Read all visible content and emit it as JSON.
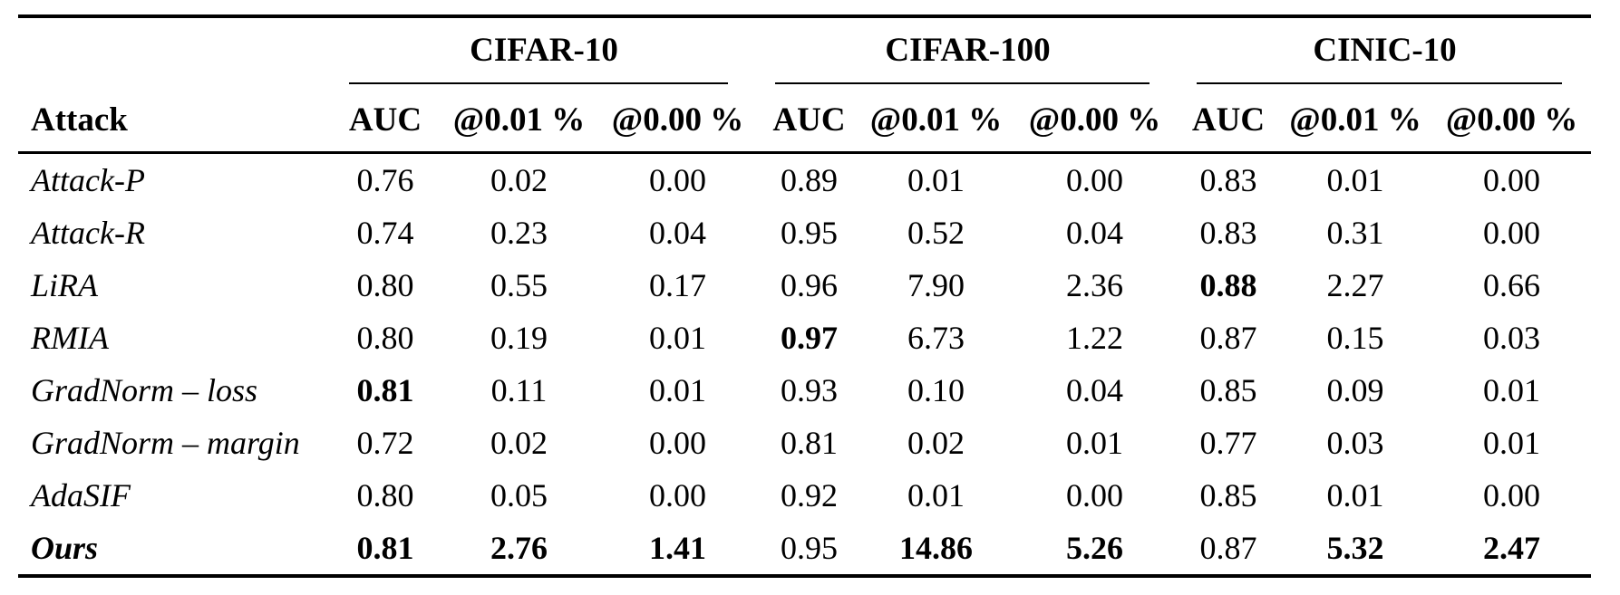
{
  "table": {
    "row_header": "Attack",
    "groups": [
      {
        "label": "CIFAR-10"
      },
      {
        "label": "CIFAR-100"
      },
      {
        "label": "CINIC-10"
      }
    ],
    "metric_headers": [
      "AUC",
      "@0.01 %",
      "@0.00 %"
    ],
    "rows": [
      {
        "attack": "Attack-P",
        "bold_attack": false,
        "values": [
          "0.76",
          "0.02",
          "0.00",
          "0.89",
          "0.01",
          "0.00",
          "0.83",
          "0.01",
          "0.00"
        ],
        "bold": [
          false,
          false,
          false,
          false,
          false,
          false,
          false,
          false,
          false
        ]
      },
      {
        "attack": "Attack-R",
        "bold_attack": false,
        "values": [
          "0.74",
          "0.23",
          "0.04",
          "0.95",
          "0.52",
          "0.04",
          "0.83",
          "0.31",
          "0.00"
        ],
        "bold": [
          false,
          false,
          false,
          false,
          false,
          false,
          false,
          false,
          false
        ]
      },
      {
        "attack": "LiRA",
        "bold_attack": false,
        "values": [
          "0.80",
          "0.55",
          "0.17",
          "0.96",
          "7.90",
          "2.36",
          "0.88",
          "2.27",
          "0.66"
        ],
        "bold": [
          false,
          false,
          false,
          false,
          false,
          false,
          true,
          false,
          false
        ]
      },
      {
        "attack": "RMIA",
        "bold_attack": false,
        "values": [
          "0.80",
          "0.19",
          "0.01",
          "0.97",
          "6.73",
          "1.22",
          "0.87",
          "0.15",
          "0.03"
        ],
        "bold": [
          false,
          false,
          false,
          true,
          false,
          false,
          false,
          false,
          false
        ]
      },
      {
        "attack": "GradNorm – loss",
        "bold_attack": false,
        "values": [
          "0.81",
          "0.11",
          "0.01",
          "0.93",
          "0.10",
          "0.04",
          "0.85",
          "0.09",
          "0.01"
        ],
        "bold": [
          true,
          false,
          false,
          false,
          false,
          false,
          false,
          false,
          false
        ]
      },
      {
        "attack": "GradNorm – margin",
        "bold_attack": false,
        "values": [
          "0.72",
          "0.02",
          "0.00",
          "0.81",
          "0.02",
          "0.01",
          "0.77",
          "0.03",
          "0.01"
        ],
        "bold": [
          false,
          false,
          false,
          false,
          false,
          false,
          false,
          false,
          false
        ]
      },
      {
        "attack": "AdaSIF",
        "bold_attack": false,
        "values": [
          "0.80",
          "0.05",
          "0.00",
          "0.92",
          "0.01",
          "0.00",
          "0.85",
          "0.01",
          "0.00"
        ],
        "bold": [
          false,
          false,
          false,
          false,
          false,
          false,
          false,
          false,
          false
        ]
      },
      {
        "attack": "Ours",
        "bold_attack": true,
        "values": [
          "0.81",
          "2.76",
          "1.41",
          "0.95",
          "14.86",
          "5.26",
          "0.87",
          "5.32",
          "2.47"
        ],
        "bold": [
          true,
          true,
          true,
          false,
          true,
          true,
          false,
          true,
          true
        ]
      }
    ]
  }
}
